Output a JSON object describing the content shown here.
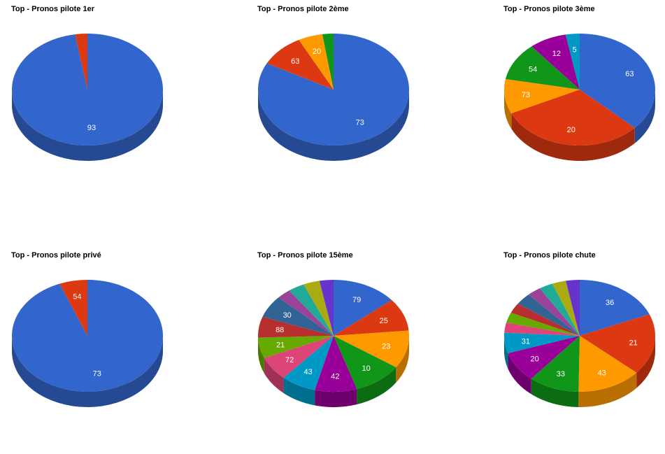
{
  "palette": [
    "#3366cc",
    "#dc3912",
    "#ff9900",
    "#109618",
    "#990099",
    "#0099c6",
    "#dd4477",
    "#66aa00",
    "#b82e2e",
    "#316395",
    "#994499",
    "#22aa99",
    "#aaaa11",
    "#6633cc"
  ],
  "chart_data": [
    {
      "type": "pie",
      "title": "Top - Pronos pilote 1er",
      "slices": [
        {
          "value": 93,
          "label": "93",
          "color": "#3366cc"
        },
        {
          "value": 2.5,
          "label": "",
          "color": "#dc3912"
        }
      ]
    },
    {
      "type": "pie",
      "title": "Top - Pronos pilote 2ème",
      "slices": [
        {
          "value": 73,
          "label": "73",
          "color": "#3366cc"
        },
        {
          "value": 8.5,
          "label": "63",
          "color": "#dc3912"
        },
        {
          "value": 4.6,
          "label": "20",
          "color": "#ff9900"
        },
        {
          "value": 2.1,
          "label": "",
          "color": "#109618"
        }
      ]
    },
    {
      "type": "pie",
      "title": "Top - Pronos pilote 3ème",
      "slices": [
        {
          "value": 37,
          "label": "63",
          "color": "#3366cc"
        },
        {
          "value": 31,
          "label": "20",
          "color": "#dc3912"
        },
        {
          "value": 10,
          "label": "73",
          "color": "#ff9900"
        },
        {
          "value": 11,
          "label": "54",
          "color": "#109618"
        },
        {
          "value": 8,
          "label": "12",
          "color": "#990099"
        },
        {
          "value": 3,
          "label": "5",
          "color": "#0099c6"
        }
      ]
    },
    {
      "type": "pie",
      "title": "Top - Pronos pilote privé",
      "slices": [
        {
          "value": 94,
          "label": "73",
          "color": "#3366cc"
        },
        {
          "value": 6,
          "label": "54",
          "color": "#dc3912"
        }
      ]
    },
    {
      "type": "pie",
      "title": "Top - Pronos pilote 15ème",
      "slices": [
        {
          "value": 14,
          "label": "79",
          "color": "#3366cc"
        },
        {
          "value": 9.5,
          "label": "25",
          "color": "#dc3912"
        },
        {
          "value": 11,
          "label": "23",
          "color": "#ff9900"
        },
        {
          "value": 10.5,
          "label": "10",
          "color": "#109618"
        },
        {
          "value": 9,
          "label": "42",
          "color": "#990099"
        },
        {
          "value": 7.5,
          "label": "43",
          "color": "#0099c6"
        },
        {
          "value": 7,
          "label": "72",
          "color": "#dd4477"
        },
        {
          "value": 6,
          "label": "21",
          "color": "#66aa00"
        },
        {
          "value": 6,
          "label": "88",
          "color": "#b82e2e"
        },
        {
          "value": 6.5,
          "label": "30",
          "color": "#316395"
        },
        {
          "value": 3,
          "label": "",
          "color": "#994499"
        },
        {
          "value": 3.5,
          "label": "",
          "color": "#22aa99"
        },
        {
          "value": 3.5,
          "label": "",
          "color": "#aaaa11"
        },
        {
          "value": 3,
          "label": "",
          "color": "#6633cc"
        }
      ]
    },
    {
      "type": "pie",
      "title": "Top - Pronos pilote chute",
      "slices": [
        {
          "value": 19,
          "label": "36",
          "color": "#3366cc"
        },
        {
          "value": 18,
          "label": "21",
          "color": "#dc3912"
        },
        {
          "value": 14,
          "label": "43",
          "color": "#ff9900"
        },
        {
          "value": 11,
          "label": "33",
          "color": "#109618"
        },
        {
          "value": 9,
          "label": "20",
          "color": "#990099"
        },
        {
          "value": 6,
          "label": "31",
          "color": "#0099c6"
        },
        {
          "value": 3,
          "label": "",
          "color": "#dd4477"
        },
        {
          "value": 3,
          "label": "",
          "color": "#66aa00"
        },
        {
          "value": 3,
          "label": "",
          "color": "#b82e2e"
        },
        {
          "value": 3.5,
          "label": "",
          "color": "#316395"
        },
        {
          "value": 3,
          "label": "",
          "color": "#994499"
        },
        {
          "value": 3,
          "label": "",
          "color": "#22aa99"
        },
        {
          "value": 3,
          "label": "",
          "color": "#aaaa11"
        },
        {
          "value": 3,
          "label": "",
          "color": "#6633cc"
        }
      ]
    }
  ]
}
